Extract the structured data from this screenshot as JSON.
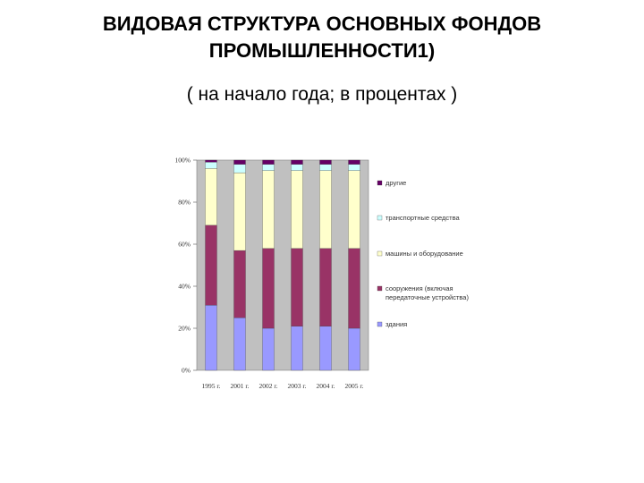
{
  "header": {
    "title_line1": "ВИДОВАЯ СТРУКТУРА ОСНОВНЫХ ФОНДОВ",
    "title_line2": "ПРОМЫШЛЕННОСТИ1)",
    "subtitle": "( на начало года; в процентах )"
  },
  "chart_data": {
    "type": "bar",
    "stacked": true,
    "title": "",
    "xlabel": "",
    "ylabel": "",
    "ylim": [
      0,
      100
    ],
    "y_ticks": [
      "0%",
      "20%",
      "40%",
      "60%",
      "80%",
      "100%"
    ],
    "categories": [
      "1995 г.",
      "2001 г.",
      "2002 г.",
      "2003 г.",
      "2004 г.",
      "2005 г."
    ],
    "grid": false,
    "plot_background": "#c0c0c0",
    "legend_position": "right",
    "series": [
      {
        "name": "здания",
        "color": "#9999ff",
        "values": [
          31,
          25,
          20,
          21,
          21,
          20
        ]
      },
      {
        "name": "сооружения (включая передаточные устройства)",
        "color": "#993366",
        "values": [
          38,
          32,
          38,
          37,
          37,
          38
        ]
      },
      {
        "name": "машины и оборудование",
        "color": "#ffffcc",
        "values": [
          27,
          37,
          37,
          37,
          37,
          37
        ]
      },
      {
        "name": "транспортные средства",
        "color": "#ccffff",
        "values": [
          3,
          4,
          3,
          3,
          3,
          3
        ]
      },
      {
        "name": "другие",
        "color": "#660066",
        "values": [
          1,
          2,
          2,
          2,
          2,
          2
        ]
      }
    ]
  }
}
